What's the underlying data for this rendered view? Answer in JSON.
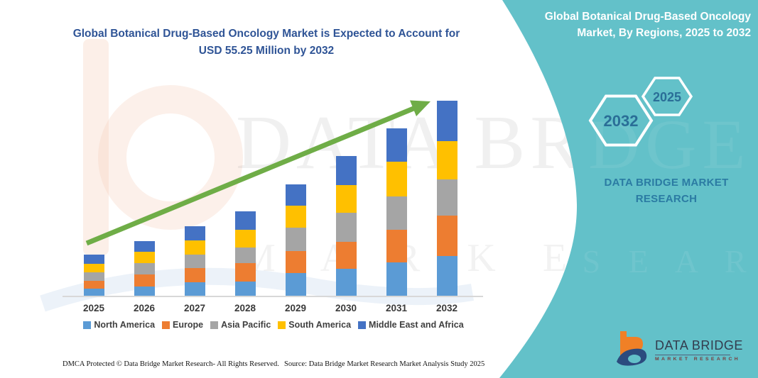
{
  "chart_title": "Global Botanical Drug-Based Oncology Market is Expected to Account for USD 55.25 Million by 2032",
  "panel": {
    "bg_color": "#63C1C9",
    "heading": "Global Botanical Drug-Based Oncology Market, By Regions, 2025 to 2032",
    "hex_large_label": "2032",
    "hex_small_label": "2025",
    "brand_wordmark": "DATA BRIDGE MARKET RESEARCH",
    "logo_name": "DATA BRIDGE",
    "logo_sub": "MARKET RESEARCH"
  },
  "watermark": {
    "line1": "DATA BRIDGE",
    "line2": "M A R K E T   R E S E A R C H",
    "panel_line1": "DGE",
    "panel_line2": "E S E A R C H"
  },
  "chart_data": {
    "type": "bar",
    "stacked": true,
    "title": "Global Botanical Drug-Based Oncology Market is Expected to Account for USD 55.25 Million by 2032",
    "unit": "USD Million",
    "categories": [
      "2025",
      "2026",
      "2027",
      "2028",
      "2029",
      "2030",
      "2031",
      "2032"
    ],
    "series": [
      {
        "name": "North America",
        "color": "#5B9BD5",
        "values": [
          2.3,
          2.9,
          4.0,
          4.3,
          6.7,
          7.8,
          9.6,
          11.5
        ]
      },
      {
        "name": "Europe",
        "color": "#ED7D31",
        "values": [
          2.2,
          3.3,
          4.0,
          5.2,
          6.2,
          7.7,
          9.3,
          11.3
        ]
      },
      {
        "name": "Asia Pacific",
        "color": "#A5A5A5",
        "values": [
          2.3,
          3.3,
          3.9,
          4.3,
          6.5,
          8.1,
          9.4,
          10.2
        ]
      },
      {
        "name": "South America",
        "color": "#FFC000",
        "values": [
          2.5,
          3.1,
          4.0,
          5.1,
          6.3,
          7.9,
          9.8,
          10.9
        ]
      },
      {
        "name": "Middle East and Africa",
        "color": "#4472C4",
        "values": [
          2.5,
          3.0,
          3.9,
          5.1,
          6.0,
          8.1,
          9.3,
          11.35
        ]
      }
    ],
    "totals_estimated": [
      11.8,
      15.6,
      19.8,
      24.0,
      31.7,
      39.6,
      47.4,
      55.25
    ],
    "ylim": [
      0,
      55.25
    ],
    "grid": false,
    "axis_color": "#D8D8D8",
    "legend_position": "bottom",
    "annotation": "upward growth trend arrow",
    "arrow_color": "#6FAD47"
  },
  "footer": {
    "dmca": "DMCA Protected © Data Bridge Market Research-  All Rights Reserved.",
    "source": "Source: Data Bridge Market Research  Market Analysis Study 2025"
  }
}
